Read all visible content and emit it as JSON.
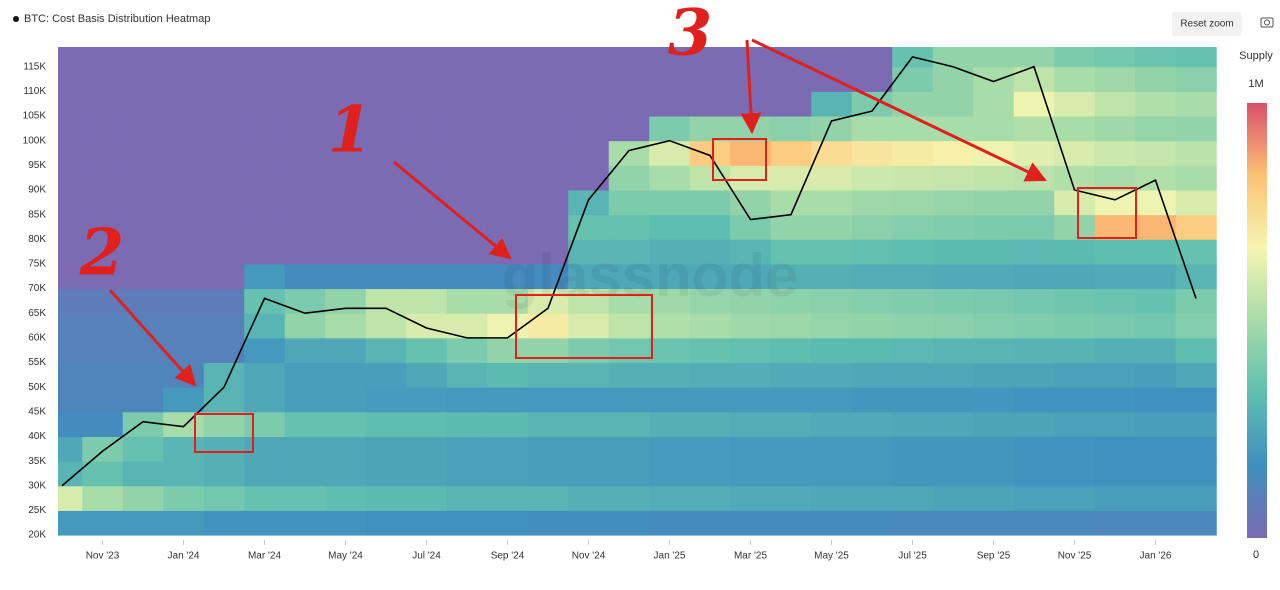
{
  "chart_data": {
    "type": "heatmap",
    "title": "BTC: Cost Basis Distribution Heatmap",
    "watermark": "glassnode",
    "reset_button": "Reset zoom",
    "colorbar_title": "Supply",
    "clim": [
      0,
      1000000
    ],
    "colorbar_ticks": [
      {
        "value": 1000000,
        "label": "1M"
      },
      0
    ],
    "colorscale": [
      "#7b6bb3",
      "#3f8fc0",
      "#5fbfb0",
      "#a8dca8",
      "#f6f5b0",
      "#fdc274",
      "#d9506a"
    ],
    "categories": [
      null,
      "Nov '23",
      null,
      "Jan '24",
      null,
      "Mar '24",
      null,
      "May '24",
      null,
      "Jul '24",
      null,
      "Sep '24",
      null,
      "Nov '24",
      null,
      "Jan '25",
      null,
      "Mar '25",
      null,
      "May '25",
      null,
      "Jul '25",
      null,
      "Sep '25",
      null,
      "Nov '25",
      null,
      "Jan '26",
      null
    ],
    "ylim": [
      19000,
      119000
    ],
    "yticks": [
      {
        "value": 20000,
        "label": "20K"
      },
      {
        "value": 25000,
        "label": "25K"
      },
      {
        "value": 30000,
        "label": "30K"
      },
      {
        "value": 35000,
        "label": "35K"
      },
      {
        "value": 40000,
        "label": "40K"
      },
      {
        "value": 45000,
        "label": "45K"
      },
      {
        "value": 50000,
        "label": "50K"
      },
      {
        "value": 55000,
        "label": "55K"
      },
      {
        "value": 60000,
        "label": "60K"
      },
      {
        "value": 65000,
        "label": "65K"
      },
      {
        "value": 70000,
        "label": "70K"
      },
      {
        "value": 75000,
        "label": "75K"
      },
      {
        "value": 80000,
        "label": "80K"
      },
      {
        "value": 85000,
        "label": "85K"
      },
      {
        "value": 90000,
        "label": "90K"
      },
      {
        "value": 95000,
        "label": "95K"
      },
      {
        "value": 100000,
        "label": "100K"
      },
      {
        "value": 105000,
        "label": "105K"
      },
      {
        "value": 110000,
        "label": "110K"
      },
      {
        "value": 115000,
        "label": "115K"
      }
    ],
    "y_bins": [
      20000,
      25000,
      30000,
      35000,
      40000,
      45000,
      50000,
      55000,
      60000,
      65000,
      70000,
      75000,
      80000,
      85000,
      90000,
      95000,
      100000,
      105000,
      110000,
      115000,
      120000
    ],
    "z": [
      [
        200000,
        600000,
        300000,
        250000,
        150000,
        120000,
        120000,
        100000,
        100000,
        80000,
        0,
        0,
        0,
        0,
        0,
        0,
        0,
        0,
        0,
        0
      ],
      [
        200000,
        500000,
        350000,
        400000,
        150000,
        120000,
        120000,
        100000,
        100000,
        80000,
        0,
        0,
        0,
        0,
        0,
        0,
        0,
        0,
        0,
        0
      ],
      [
        200000,
        450000,
        300000,
        350000,
        400000,
        120000,
        120000,
        100000,
        100000,
        80000,
        0,
        0,
        0,
        0,
        0,
        0,
        0,
        0,
        0,
        0
      ],
      [
        200000,
        400000,
        300000,
        300000,
        500000,
        200000,
        120000,
        100000,
        100000,
        80000,
        0,
        0,
        0,
        0,
        0,
        0,
        0,
        0,
        0,
        0
      ],
      [
        180000,
        380000,
        280000,
        280000,
        450000,
        300000,
        300000,
        100000,
        100000,
        80000,
        0,
        0,
        0,
        0,
        0,
        0,
        0,
        0,
        0,
        0
      ],
      [
        180000,
        350000,
        250000,
        250000,
        400000,
        250000,
        250000,
        200000,
        300000,
        350000,
        200000,
        0,
        0,
        0,
        0,
        0,
        0,
        0,
        0,
        0
      ],
      [
        180000,
        350000,
        250000,
        250000,
        350000,
        220000,
        220000,
        250000,
        450000,
        400000,
        150000,
        0,
        0,
        0,
        0,
        0,
        0,
        0,
        0,
        0
      ],
      [
        180000,
        330000,
        250000,
        250000,
        350000,
        220000,
        220000,
        250000,
        500000,
        450000,
        150000,
        0,
        0,
        0,
        0,
        0,
        0,
        0,
        0,
        0
      ],
      [
        170000,
        320000,
        240000,
        240000,
        330000,
        210000,
        220000,
        300000,
        550000,
        550000,
        150000,
        0,
        0,
        0,
        0,
        0,
        0,
        0,
        0,
        0
      ],
      [
        170000,
        320000,
        240000,
        240000,
        330000,
        210000,
        250000,
        350000,
        600000,
        550000,
        150000,
        0,
        0,
        0,
        0,
        0,
        0,
        0,
        0,
        0
      ],
      [
        170000,
        300000,
        230000,
        230000,
        320000,
        200000,
        300000,
        400000,
        600000,
        500000,
        150000,
        0,
        0,
        0,
        0,
        0,
        0,
        0,
        0,
        0
      ],
      [
        170000,
        300000,
        230000,
        230000,
        320000,
        200000,
        320000,
        450000,
        650000,
        500000,
        150000,
        0,
        0,
        0,
        0,
        0,
        0,
        0,
        0,
        0
      ],
      [
        160000,
        300000,
        220000,
        220000,
        300000,
        200000,
        300000,
        450000,
        700000,
        600000,
        150000,
        0,
        0,
        0,
        0,
        0,
        0,
        0,
        0,
        0
      ],
      [
        160000,
        280000,
        220000,
        220000,
        300000,
        200000,
        300000,
        400000,
        600000,
        550000,
        250000,
        300000,
        350000,
        300000,
        0,
        0,
        0,
        0,
        0,
        0
      ],
      [
        160000,
        280000,
        220000,
        220000,
        300000,
        200000,
        280000,
        380000,
        550000,
        500000,
        250000,
        300000,
        350000,
        400000,
        450000,
        500000,
        0,
        0,
        0,
        0
      ],
      [
        150000,
        270000,
        210000,
        210000,
        280000,
        200000,
        280000,
        360000,
        520000,
        480000,
        250000,
        280000,
        330000,
        400000,
        500000,
        600000,
        400000,
        0,
        0,
        0
      ],
      [
        150000,
        270000,
        210000,
        210000,
        280000,
        200000,
        270000,
        350000,
        500000,
        460000,
        250000,
        280000,
        330000,
        400000,
        550000,
        800000,
        450000,
        0,
        0,
        0
      ],
      [
        150000,
        260000,
        200000,
        200000,
        270000,
        200000,
        270000,
        340000,
        480000,
        450000,
        250000,
        300000,
        400000,
        450000,
        600000,
        850000,
        450000,
        0,
        0,
        0
      ],
      [
        150000,
        260000,
        200000,
        200000,
        270000,
        200000,
        260000,
        330000,
        470000,
        440000,
        280000,
        350000,
        450000,
        500000,
        600000,
        800000,
        430000,
        0,
        0,
        0
      ],
      [
        150000,
        250000,
        200000,
        200000,
        260000,
        200000,
        260000,
        320000,
        460000,
        430000,
        280000,
        350000,
        450000,
        500000,
        600000,
        750000,
        450000,
        300000,
        0,
        0
      ],
      [
        150000,
        250000,
        200000,
        200000,
        260000,
        190000,
        250000,
        320000,
        450000,
        420000,
        270000,
        340000,
        430000,
        480000,
        580000,
        720000,
        500000,
        400000,
        0,
        0
      ],
      [
        140000,
        250000,
        190000,
        190000,
        250000,
        190000,
        250000,
        310000,
        440000,
        410000,
        270000,
        330000,
        420000,
        470000,
        570000,
        700000,
        500000,
        450000,
        400000,
        350000
      ],
      [
        140000,
        240000,
        190000,
        190000,
        250000,
        190000,
        250000,
        300000,
        430000,
        400000,
        260000,
        320000,
        410000,
        460000,
        560000,
        680000,
        500000,
        450000,
        450000,
        450000
      ],
      [
        140000,
        240000,
        190000,
        190000,
        240000,
        190000,
        240000,
        300000,
        420000,
        390000,
        260000,
        320000,
        400000,
        450000,
        550000,
        650000,
        500000,
        500000,
        500000,
        450000
      ],
      [
        140000,
        230000,
        180000,
        180000,
        240000,
        180000,
        240000,
        290000,
        410000,
        380000,
        250000,
        310000,
        400000,
        450000,
        540000,
        620000,
        520000,
        650000,
        550000,
        450000
      ],
      [
        140000,
        230000,
        180000,
        180000,
        230000,
        180000,
        230000,
        290000,
        400000,
        370000,
        250000,
        320000,
        450000,
        600000,
        520000,
        600000,
        500000,
        600000,
        500000,
        400000
      ],
      [
        130000,
        220000,
        170000,
        170000,
        230000,
        180000,
        230000,
        280000,
        390000,
        360000,
        260000,
        330000,
        850000,
        650000,
        500000,
        580000,
        480000,
        550000,
        480000,
        380000
      ],
      [
        130000,
        220000,
        170000,
        170000,
        220000,
        170000,
        220000,
        280000,
        380000,
        350000,
        260000,
        330000,
        850000,
        650000,
        520000,
        560000,
        460000,
        520000,
        450000,
        360000
      ],
      [
        130000,
        220000,
        170000,
        170000,
        220000,
        170000,
        250000,
        330000,
        420000,
        400000,
        300000,
        350000,
        800000,
        600000,
        500000,
        540000,
        450000,
        500000,
        430000,
        350000
      ]
    ],
    "series": [
      {
        "color": "#000000",
        "values": [
          30000,
          37000,
          43000,
          42000,
          50000,
          68000,
          65000,
          66000,
          66000,
          62000,
          60000,
          60000,
          66000,
          88000,
          98000,
          100000,
          97000,
          84000,
          85000,
          104000,
          106000,
          117000,
          115000,
          112000,
          115000,
          90000,
          88000,
          92000,
          68000
        ]
      }
    ],
    "annotations": [
      "1",
      "2",
      "3"
    ]
  }
}
